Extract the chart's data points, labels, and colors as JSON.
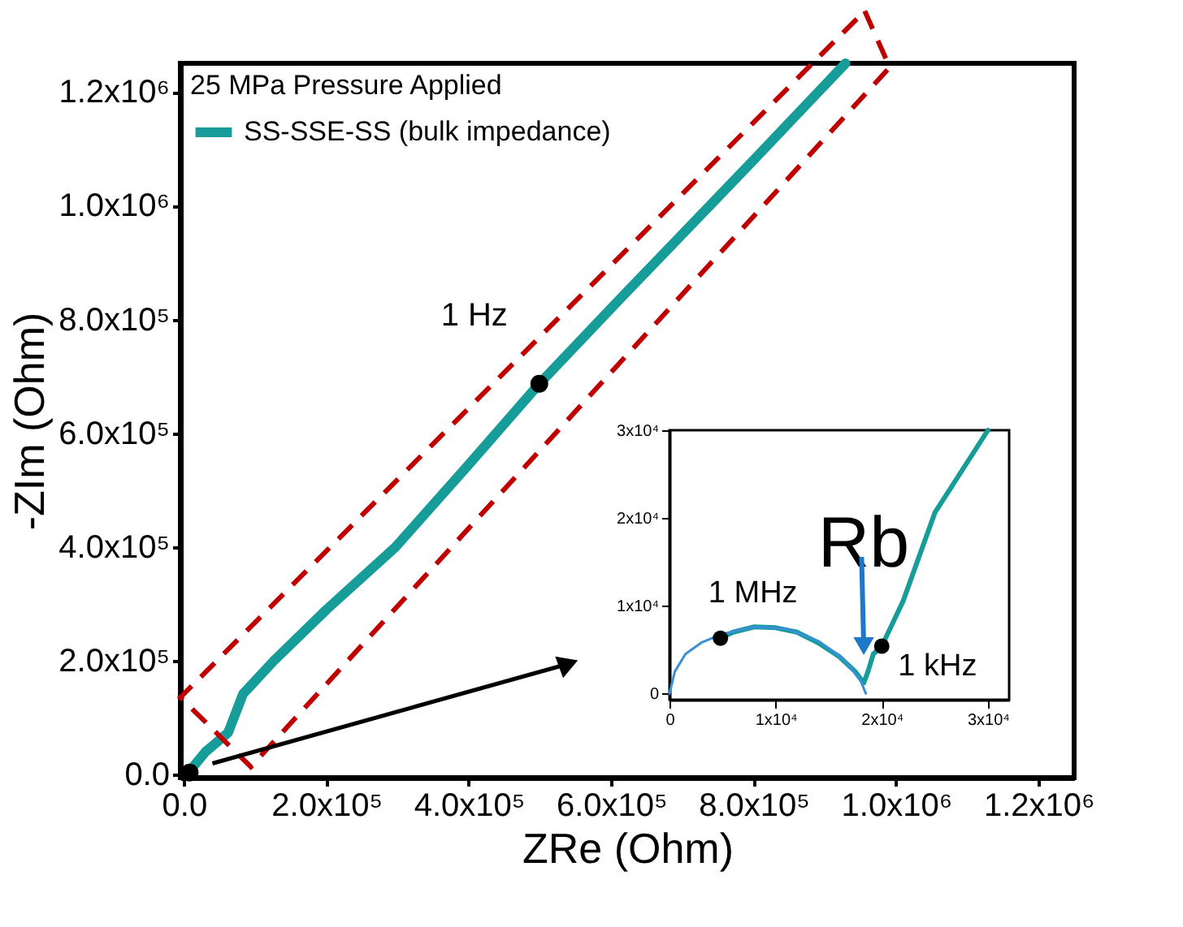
{
  "chart_data": [
    {
      "type": "line",
      "legend_title": "25 MPa Pressure Applied",
      "xlabel": "ZRe (Ohm)",
      "ylabel": "-ZIm (Ohm)",
      "xlim": [
        -5000,
        1250000
      ],
      "ylim": [
        -5000,
        1250000
      ],
      "xticks": [
        {
          "value": 0,
          "label": "0.0"
        },
        {
          "value": 200000,
          "label": "2.0x10⁵"
        },
        {
          "value": 400000,
          "label": "4.0x10⁵"
        },
        {
          "value": 600000,
          "label": "6.0x10⁵"
        },
        {
          "value": 800000,
          "label": "8.0x10⁵"
        },
        {
          "value": 1000000,
          "label": "1.0x10⁶"
        },
        {
          "value": 1200000,
          "label": "1.2x10⁶"
        }
      ],
      "yticks": [
        {
          "value": 0,
          "label": "0.0"
        },
        {
          "value": 200000,
          "label": "2.0x10⁵"
        },
        {
          "value": 400000,
          "label": "4.0x10⁵"
        },
        {
          "value": 600000,
          "label": "6.0x10⁵"
        },
        {
          "value": 800000,
          "label": "8.0x10⁵"
        },
        {
          "value": 1000000,
          "label": "1.0x10⁶"
        },
        {
          "value": 1200000,
          "label": "1.2x10⁶"
        }
      ],
      "grid": false,
      "legend": "top left",
      "series": [
        {
          "name": "SS-SSE-SS (bulk impedance)",
          "color": "#169c99",
          "x": [
            9000,
            30000,
            62000,
            83000,
            126000,
            200000,
            297000,
            400000,
            499000,
            600000,
            700000,
            800000,
            929000
          ],
          "values": [
            8000,
            40000,
            74000,
            142000,
            200000,
            290000,
            400000,
            545000,
            687000,
            820000,
            950000,
            1080000,
            1250000
          ]
        },
        {
          "type": "scatter",
          "marker": "circle",
          "color": "#000000",
          "x": [
            8000,
            499000
          ],
          "values": [
            4000,
            687000
          ]
        }
      ],
      "annotations": [
        {
          "text": "1 Hz",
          "x": 499000,
          "y": 687000
        }
      ]
    },
    {
      "type": "line",
      "xlim": [
        0,
        32000
      ],
      "ylim": [
        -700,
        30000
      ],
      "xticks": [
        0,
        {
          "value": 10000,
          "label": "1x10⁴"
        },
        {
          "value": 20000,
          "label": "2x10⁴"
        },
        {
          "value": 30000,
          "label": "3x10⁴"
        }
      ],
      "yticks": [
        0,
        {
          "value": 10000,
          "label": "1x10⁴"
        },
        {
          "value": 20000,
          "label": "2x10⁴"
        },
        {
          "value": 30000,
          "label": "3x10⁴"
        }
      ],
      "grid": false,
      "series": [
        {
          "color": "#169c99",
          "x": [
            4800,
            6000,
            8000,
            10000,
            12000,
            14000,
            16000,
            17500,
            18300,
            18700,
            19200,
            20000,
            22000,
            25000,
            30000
          ],
          "values": [
            6300,
            7000,
            7600,
            7500,
            7000,
            5800,
            4200,
            2500,
            1200,
            2500,
            4500,
            5400,
            10500,
            20600,
            30000
          ]
        },
        {
          "color": "#3a8fd8",
          "x": [
            0,
            500,
            1500,
            3000,
            5000,
            8000,
            11000,
            14000,
            16500,
            18000,
            18500
          ],
          "values": [
            0,
            2500,
            4500,
            5800,
            6800,
            7600,
            7400,
            6000,
            3800,
            1500,
            0
          ]
        },
        {
          "type": "scatter",
          "marker": "circle",
          "color": "#000000",
          "x": [
            4800,
            20000
          ],
          "values": [
            6300,
            5400
          ]
        }
      ],
      "annotations": [
        {
          "text": "1 MHz",
          "x": 4800,
          "y": 6300
        },
        {
          "text": "1 kHz",
          "x": 20000,
          "y": 5400
        },
        {
          "text": "Rb",
          "x": 18300,
          "y": 3900
        }
      ]
    }
  ]
}
